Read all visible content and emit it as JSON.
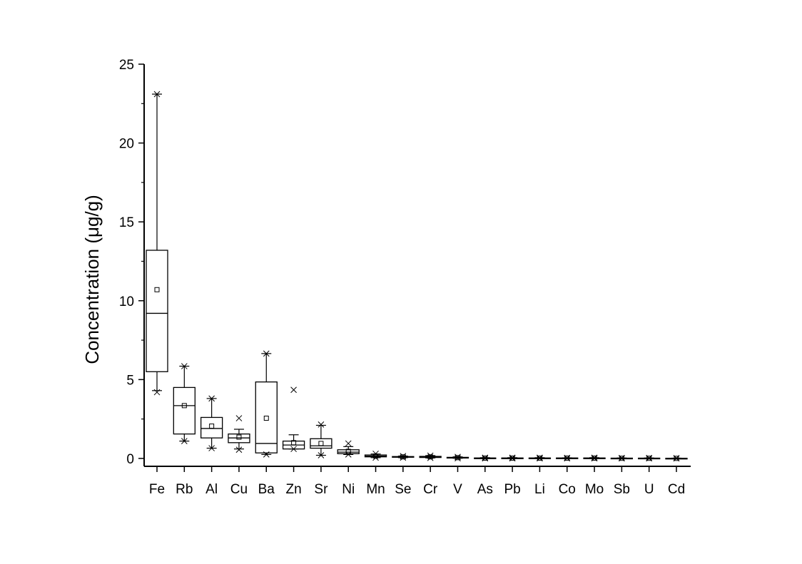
{
  "chart_data": {
    "type": "box",
    "ylabel": "Concentration (μg/g)",
    "xlabel": "",
    "ylim": [
      -0.5,
      25
    ],
    "yticks": [
      0,
      5,
      10,
      15,
      20,
      25
    ],
    "grid": false,
    "categories": [
      "Fe",
      "Rb",
      "Al",
      "Cu",
      "Ba",
      "Zn",
      "Sr",
      "Ni",
      "Mn",
      "Se",
      "Cr",
      "V",
      "As",
      "Pb",
      "Li",
      "Co",
      "Mo",
      "Sb",
      "U",
      "Cd"
    ],
    "boxes": [
      {
        "q1": 5.5,
        "median": 9.2,
        "q3": 13.2,
        "whisker_low": 4.3,
        "whisker_high": 23.1,
        "mean": 10.7,
        "min": 4.2,
        "max": 23.1
      },
      {
        "q1": 1.55,
        "median": 3.35,
        "q3": 4.5,
        "whisker_low": 1.1,
        "whisker_high": 5.85,
        "mean": 3.35,
        "min": 1.1,
        "max": 5.85
      },
      {
        "q1": 1.3,
        "median": 1.9,
        "q3": 2.6,
        "whisker_low": 0.65,
        "whisker_high": 3.8,
        "mean": 2.05,
        "min": 0.65,
        "max": 3.8
      },
      {
        "q1": 1.0,
        "median": 1.3,
        "q3": 1.55,
        "whisker_low": 0.6,
        "whisker_high": 1.85,
        "mean": 1.35,
        "min": 0.55,
        "max": 2.55
      },
      {
        "q1": 0.35,
        "median": 0.95,
        "q3": 4.85,
        "whisker_low": 0.25,
        "whisker_high": 6.65,
        "mean": 2.55,
        "min": 0.25,
        "max": 6.65
      },
      {
        "q1": 0.6,
        "median": 0.85,
        "q3": 1.1,
        "whisker_low": 0.6,
        "whisker_high": 1.5,
        "mean": 1.0,
        "min": 0.6,
        "max": 4.35
      },
      {
        "q1": 0.65,
        "median": 0.8,
        "q3": 1.25,
        "whisker_low": 0.2,
        "whisker_high": 2.1,
        "mean": 0.95,
        "min": 0.2,
        "max": 2.15
      },
      {
        "q1": 0.3,
        "median": 0.4,
        "q3": 0.55,
        "whisker_low": 0.25,
        "whisker_high": 0.75,
        "mean": 0.45,
        "min": 0.25,
        "max": 0.95
      },
      {
        "q1": 0.1,
        "median": 0.15,
        "q3": 0.22,
        "whisker_low": 0.05,
        "whisker_high": 0.28,
        "mean": 0.15,
        "min": 0.05,
        "max": 0.3
      },
      {
        "q1": 0.08,
        "median": 0.1,
        "q3": 0.12,
        "whisker_low": 0.05,
        "whisker_high": 0.15,
        "mean": 0.1,
        "min": 0.05,
        "max": 0.15
      },
      {
        "q1": 0.06,
        "median": 0.1,
        "q3": 0.13,
        "whisker_low": 0.03,
        "whisker_high": 0.18,
        "mean": 0.1,
        "min": 0.03,
        "max": 0.18
      },
      {
        "q1": 0.03,
        "median": 0.05,
        "q3": 0.07,
        "whisker_low": 0.01,
        "whisker_high": 0.1,
        "mean": 0.05,
        "min": 0.01,
        "max": 0.1
      },
      {
        "q1": 0.01,
        "median": 0.02,
        "q3": 0.03,
        "whisker_low": 0.0,
        "whisker_high": 0.05,
        "mean": 0.02,
        "min": 0.0,
        "max": 0.05
      },
      {
        "q1": 0.01,
        "median": 0.02,
        "q3": 0.03,
        "whisker_low": 0.0,
        "whisker_high": 0.05,
        "mean": 0.02,
        "min": 0.0,
        "max": 0.05
      },
      {
        "q1": 0.01,
        "median": 0.02,
        "q3": 0.03,
        "whisker_low": 0.0,
        "whisker_high": 0.05,
        "mean": 0.02,
        "min": 0.0,
        "max": 0.05
      },
      {
        "q1": 0.01,
        "median": 0.02,
        "q3": 0.03,
        "whisker_low": 0.0,
        "whisker_high": 0.04,
        "mean": 0.02,
        "min": 0.0,
        "max": 0.04
      },
      {
        "q1": 0.01,
        "median": 0.02,
        "q3": 0.03,
        "whisker_low": 0.0,
        "whisker_high": 0.05,
        "mean": 0.02,
        "min": 0.0,
        "max": 0.05
      },
      {
        "q1": 0.0,
        "median": 0.01,
        "q3": 0.02,
        "whisker_low": 0.0,
        "whisker_high": 0.03,
        "mean": 0.01,
        "min": 0.0,
        "max": 0.03
      },
      {
        "q1": 0.0,
        "median": 0.01,
        "q3": 0.02,
        "whisker_low": 0.0,
        "whisker_high": 0.03,
        "mean": 0.01,
        "min": 0.0,
        "max": 0.03
      },
      {
        "q1": 0.0,
        "median": 0.01,
        "q3": 0.01,
        "whisker_low": 0.0,
        "whisker_high": 0.02,
        "mean": 0.005,
        "min": 0.0,
        "max": 0.02
      }
    ]
  }
}
